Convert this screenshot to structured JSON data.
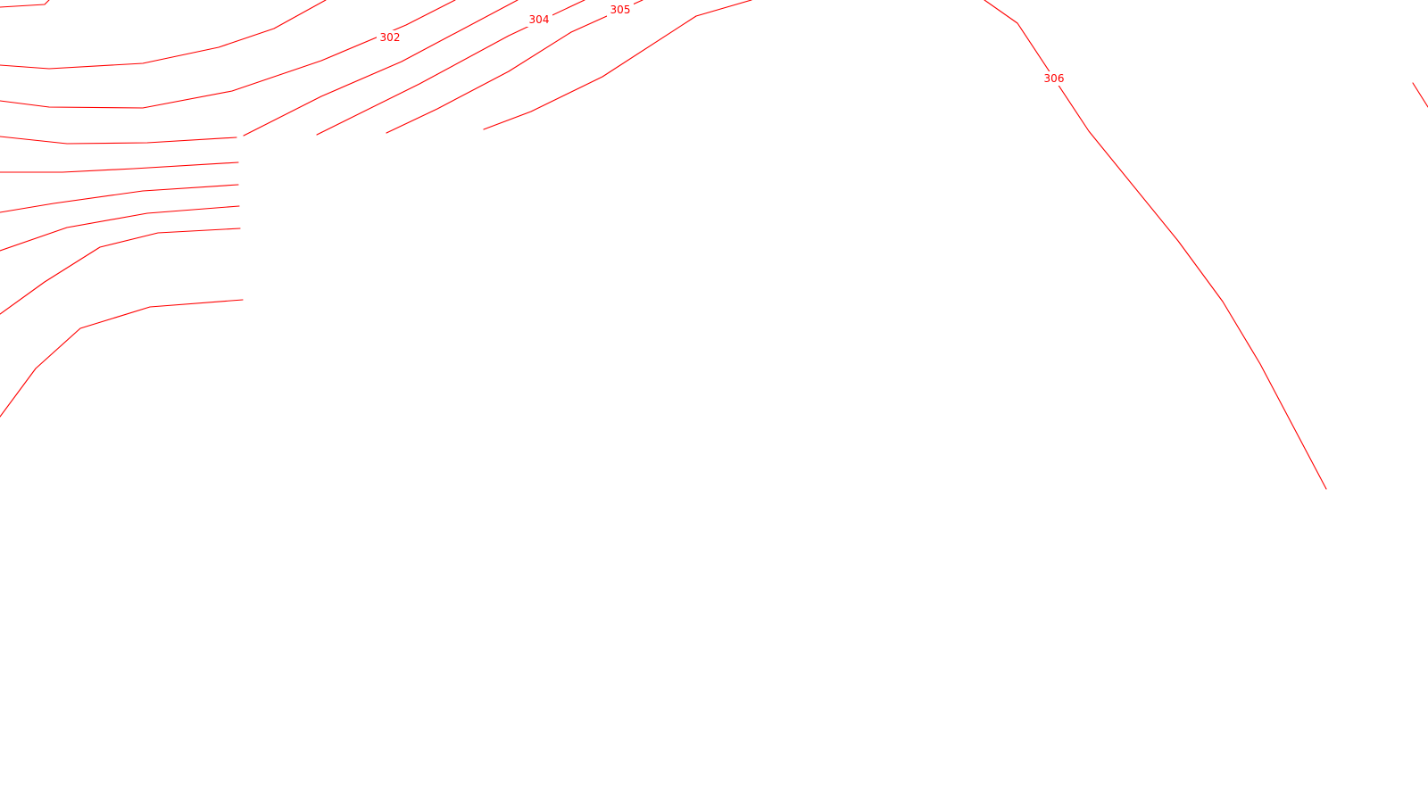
{
  "map": {
    "background_color": "#ffffff",
    "contour_color": "#ff0000",
    "contour_labels": [
      {
        "id": "label-302",
        "text": "302"
      },
      {
        "id": "label-304",
        "text": "304"
      },
      {
        "id": "label-305",
        "text": "305"
      },
      {
        "id": "label-306",
        "text": "306"
      }
    ]
  }
}
